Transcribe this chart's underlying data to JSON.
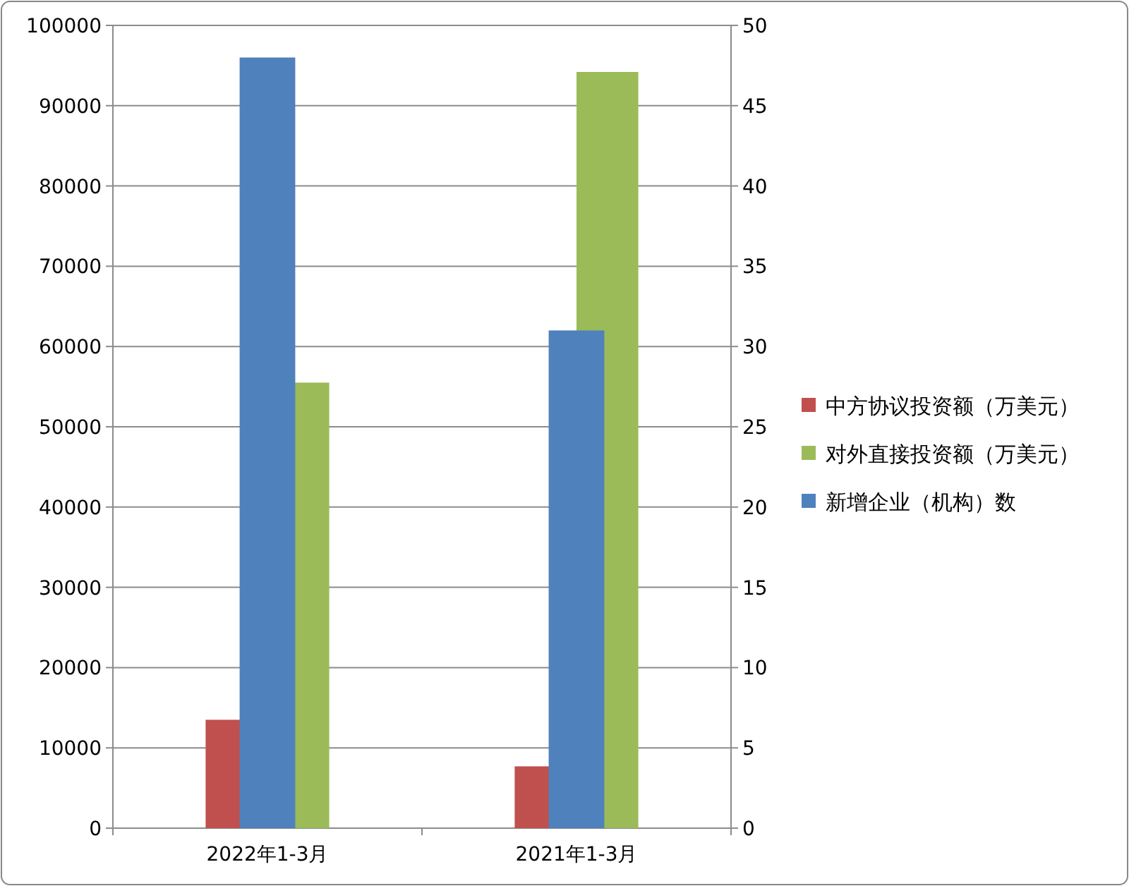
{
  "chart_data": {
    "type": "bar",
    "categories": [
      "2022年1-3月",
      "2021年1-3月"
    ],
    "series": [
      {
        "name": "中方协议投资额（万美元）",
        "color": "#c0504d",
        "values": [
          13500,
          7700
        ]
      },
      {
        "name": "对外直接投资额（万美元）",
        "color": "#9bbb59",
        "values": [
          55500,
          94200
        ]
      },
      {
        "name": "新增企业（机构）数",
        "color": "#4f81bd",
        "values": [
          48,
          31
        ],
        "axis": "y2"
      }
    ],
    "ylim": [
      0,
      100000
    ],
    "yticks": [
      0,
      10000,
      20000,
      30000,
      40000,
      50000,
      60000,
      70000,
      80000,
      90000,
      100000
    ],
    "y2lim": [
      0,
      50
    ],
    "y2ticks": [
      0,
      5,
      10,
      15,
      20,
      25,
      30,
      35,
      40,
      45,
      50
    ],
    "grid": "y",
    "legend": "right"
  }
}
